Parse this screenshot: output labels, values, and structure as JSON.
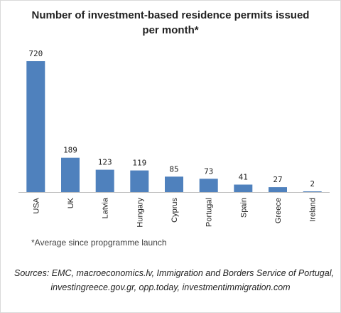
{
  "chart_data": {
    "type": "bar",
    "title_lines": [
      "Number of investment-based residence permits issued",
      "per month*"
    ],
    "categories": [
      "USA",
      "UK",
      "Latvia",
      "Hungary",
      "Cyprus",
      "Portugal",
      "Spain",
      "Greece",
      "Ireland"
    ],
    "values": [
      720,
      189,
      123,
      119,
      85,
      73,
      41,
      27,
      2
    ],
    "value_labels": [
      "720",
      "189",
      "123",
      "119",
      "85",
      "73",
      "41",
      "27",
      "2"
    ],
    "xlabel": "",
    "ylabel": "",
    "ylim": [
      0,
      720
    ],
    "grid": false,
    "legend": "none",
    "bar_color": "#4f81bd",
    "footnote": "*Average since propgramme launch",
    "source_lines": [
      "Sources: EMC, macroeconomics.lv, Immigration and Borders Service of Portugal,",
      "investingreece.gov.gr,  opp.today, investmentimmigration.com"
    ]
  }
}
